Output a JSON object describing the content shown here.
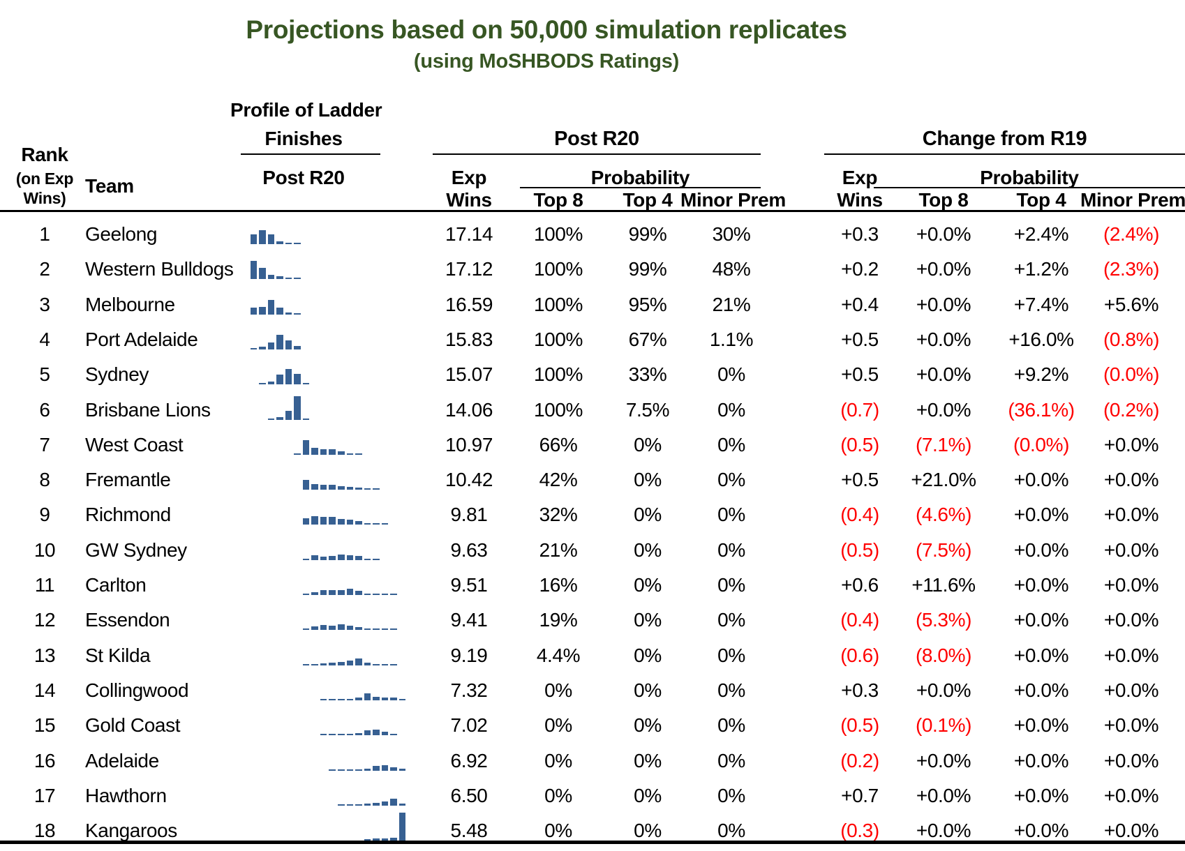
{
  "title": "Projections based on 50,000 simulation replicates",
  "subtitle": "(using MoSHBODS Ratings)",
  "colors": {
    "title_green": "#375623",
    "negative_red": "#FF0000",
    "sparkline_blue": "#376092",
    "text_black": "#000000"
  },
  "header": {
    "rank_line1": "Rank",
    "rank_line2": "(on Exp",
    "rank_line3": "Wins)",
    "team": "Team",
    "profile_line1": "Profile of Ladder",
    "profile_line2": "Finishes",
    "profile_sub": "Post R20",
    "group_post": "Post R20",
    "group_change": "Change from R19",
    "exp": "Exp",
    "wins": "Wins",
    "probability": "Probability",
    "top8": "Top 8",
    "top4": "Top 4",
    "minor_prem": "Minor Prem"
  },
  "chart_data": {
    "type": "table",
    "title": "Projections based on 50,000 simulation replicates",
    "subtitle": "(using MoSHBODS Ratings)",
    "sparkline_meaning": "Profile of Ladder Finishes (Post R20): each mini bar chart shows the relative probability of finishing in ladder positions 1 through 18; values are relative bar heights (0 = none, 2 = trace)",
    "columns": [
      "Rank (on Exp Wins)",
      "Team",
      "Profile of Ladder Finishes Post R20",
      "Post R20 Exp Wins",
      "Post R20 Probability Top 8",
      "Post R20 Probability Top 4",
      "Post R20 Probability Minor Prem",
      "Change from R19 Exp Wins",
      "Change from R19 Probability Top 8",
      "Change from R19 Probability Top 4",
      "Change from R19 Probability Minor Prem"
    ],
    "negative_convention": "values in parentheses are negative and shown in red",
    "rows": [
      {
        "rank": "1",
        "team": "Geelong",
        "profile": [
          14,
          20,
          14,
          4,
          2,
          2,
          0,
          0,
          0,
          0,
          0,
          0,
          0,
          0,
          0,
          0,
          0,
          0
        ],
        "post": {
          "exp_wins": "17.14",
          "top8": "100%",
          "top4": "99%",
          "minor_prem": "30%"
        },
        "change": {
          "exp_wins": "+0.3",
          "top8": "+0.0%",
          "top4": "+2.4%",
          "minor_prem": "(2.4%)"
        }
      },
      {
        "rank": "2",
        "team": "Western Bulldogs",
        "profile": [
          26,
          16,
          6,
          4,
          2,
          2,
          0,
          0,
          0,
          0,
          0,
          0,
          0,
          0,
          0,
          0,
          0,
          0
        ],
        "post": {
          "exp_wins": "17.12",
          "top8": "100%",
          "top4": "99%",
          "minor_prem": "48%"
        },
        "change": {
          "exp_wins": "+0.2",
          "top8": "+0.0%",
          "top4": "+1.2%",
          "minor_prem": "(2.3%)"
        }
      },
      {
        "rank": "3",
        "team": "Melbourne",
        "profile": [
          10,
          11,
          21,
          10,
          3,
          2,
          0,
          0,
          0,
          0,
          0,
          0,
          0,
          0,
          0,
          0,
          0,
          0
        ],
        "post": {
          "exp_wins": "16.59",
          "top8": "100%",
          "top4": "95%",
          "minor_prem": "21%"
        },
        "change": {
          "exp_wins": "+0.4",
          "top8": "+0.0%",
          "top4": "+7.4%",
          "minor_prem": "+5.6%"
        }
      },
      {
        "rank": "4",
        "team": "Port Adelaide",
        "profile": [
          2,
          4,
          10,
          21,
          13,
          5,
          0,
          0,
          0,
          0,
          0,
          0,
          0,
          0,
          0,
          0,
          0,
          0
        ],
        "post": {
          "exp_wins": "15.83",
          "top8": "100%",
          "top4": "67%",
          "minor_prem": "1.1%"
        },
        "change": {
          "exp_wins": "+0.5",
          "top8": "+0.0%",
          "top4": "+16.0%",
          "minor_prem": "(0.8%)"
        }
      },
      {
        "rank": "5",
        "team": "Sydney",
        "profile": [
          0,
          2,
          4,
          14,
          22,
          15,
          2,
          0,
          0,
          0,
          0,
          0,
          0,
          0,
          0,
          0,
          0,
          0
        ],
        "post": {
          "exp_wins": "15.07",
          "top8": "100%",
          "top4": "33%",
          "minor_prem": "0%"
        },
        "change": {
          "exp_wins": "+0.5",
          "top8": "+0.0%",
          "top4": "+9.2%",
          "minor_prem": "(0.0%)"
        }
      },
      {
        "rank": "6",
        "team": "Brisbane Lions",
        "profile": [
          0,
          0,
          2,
          4,
          13,
          34,
          2,
          0,
          0,
          0,
          0,
          0,
          0,
          0,
          0,
          0,
          0,
          0
        ],
        "post": {
          "exp_wins": "14.06",
          "top8": "100%",
          "top4": "7.5%",
          "minor_prem": "0%"
        },
        "change": {
          "exp_wins": "(0.7)",
          "top8": "+0.0%",
          "top4": "(36.1%)",
          "minor_prem": "(0.2%)"
        }
      },
      {
        "rank": "7",
        "team": "West Coast",
        "profile": [
          0,
          0,
          0,
          0,
          0,
          2,
          21,
          10,
          8,
          8,
          5,
          2,
          2,
          0,
          0,
          0,
          0,
          0
        ],
        "post": {
          "exp_wins": "10.97",
          "top8": "66%",
          "top4": "0%",
          "minor_prem": "0%"
        },
        "change": {
          "exp_wins": "(0.5)",
          "top8": "(7.1%)",
          "top4": "(0.0%)",
          "minor_prem": "+0.0%"
        }
      },
      {
        "rank": "8",
        "team": "Fremantle",
        "profile": [
          0,
          0,
          0,
          0,
          0,
          0,
          14,
          8,
          7,
          7,
          5,
          4,
          3,
          2,
          2,
          0,
          0,
          0
        ],
        "post": {
          "exp_wins": "10.42",
          "top8": "42%",
          "top4": "0%",
          "minor_prem": "0%"
        },
        "change": {
          "exp_wins": "+0.5",
          "top8": "+21.0%",
          "top4": "+0.0%",
          "minor_prem": "+0.0%"
        }
      },
      {
        "rank": "9",
        "team": "Richmond",
        "profile": [
          0,
          0,
          0,
          0,
          0,
          0,
          9,
          12,
          11,
          11,
          8,
          7,
          5,
          2,
          2,
          2,
          0,
          0
        ],
        "post": {
          "exp_wins": "9.81",
          "top8": "32%",
          "top4": "0%",
          "minor_prem": "0%"
        },
        "change": {
          "exp_wins": "(0.4)",
          "top8": "(4.6%)",
          "top4": "+0.0%",
          "minor_prem": "+0.0%"
        }
      },
      {
        "rank": "10",
        "team": "GW Sydney",
        "profile": [
          0,
          0,
          0,
          0,
          0,
          0,
          2,
          7,
          5,
          6,
          8,
          7,
          6,
          2,
          2,
          0,
          0,
          0
        ],
        "post": {
          "exp_wins": "9.63",
          "top8": "21%",
          "top4": "0%",
          "minor_prem": "0%"
        },
        "change": {
          "exp_wins": "(0.5)",
          "top8": "(7.5%)",
          "top4": "+0.0%",
          "minor_prem": "+0.0%"
        }
      },
      {
        "rank": "11",
        "team": "Carlton",
        "profile": [
          0,
          0,
          0,
          0,
          0,
          0,
          2,
          4,
          7,
          7,
          7,
          9,
          6,
          2,
          2,
          2,
          2,
          0
        ],
        "post": {
          "exp_wins": "9.51",
          "top8": "16%",
          "top4": "0%",
          "minor_prem": "0%"
        },
        "change": {
          "exp_wins": "+0.6",
          "top8": "+11.6%",
          "top4": "+0.0%",
          "minor_prem": "+0.0%"
        }
      },
      {
        "rank": "12",
        "team": "Essendon",
        "profile": [
          0,
          0,
          0,
          0,
          0,
          0,
          2,
          5,
          7,
          6,
          8,
          6,
          4,
          2,
          2,
          2,
          2,
          0
        ],
        "post": {
          "exp_wins": "9.41",
          "top8": "19%",
          "top4": "0%",
          "minor_prem": "0%"
        },
        "change": {
          "exp_wins": "(0.4)",
          "top8": "(5.3%)",
          "top4": "+0.0%",
          "minor_prem": "+0.0%"
        }
      },
      {
        "rank": "13",
        "team": "St Kilda",
        "profile": [
          0,
          0,
          0,
          0,
          0,
          0,
          2,
          2,
          3,
          4,
          5,
          7,
          10,
          4,
          2,
          2,
          2,
          0
        ],
        "post": {
          "exp_wins": "9.19",
          "top8": "4.4%",
          "top4": "0%",
          "minor_prem": "0%"
        },
        "change": {
          "exp_wins": "(0.6)",
          "top8": "(8.0%)",
          "top4": "+0.0%",
          "minor_prem": "+0.0%"
        }
      },
      {
        "rank": "14",
        "team": "Collingwood",
        "profile": [
          0,
          0,
          0,
          0,
          0,
          0,
          0,
          0,
          2,
          2,
          2,
          2,
          4,
          10,
          5,
          4,
          4,
          2
        ],
        "post": {
          "exp_wins": "7.32",
          "top8": "0%",
          "top4": "0%",
          "minor_prem": "0%"
        },
        "change": {
          "exp_wins": "+0.3",
          "top8": "+0.0%",
          "top4": "+0.0%",
          "minor_prem": "+0.0%"
        }
      },
      {
        "rank": "15",
        "team": "Gold Coast",
        "profile": [
          0,
          0,
          0,
          0,
          0,
          0,
          0,
          0,
          2,
          2,
          2,
          2,
          3,
          7,
          8,
          5,
          2,
          0
        ],
        "post": {
          "exp_wins": "7.02",
          "top8": "0%",
          "top4": "0%",
          "minor_prem": "0%"
        },
        "change": {
          "exp_wins": "(0.5)",
          "top8": "(0.1%)",
          "top4": "+0.0%",
          "minor_prem": "+0.0%"
        }
      },
      {
        "rank": "16",
        "team": "Adelaide",
        "profile": [
          0,
          0,
          0,
          0,
          0,
          0,
          0,
          0,
          0,
          2,
          2,
          2,
          2,
          3,
          7,
          8,
          5,
          3
        ],
        "post": {
          "exp_wins": "6.92",
          "top8": "0%",
          "top4": "0%",
          "minor_prem": "0%"
        },
        "change": {
          "exp_wins": "(0.2)",
          "top8": "+0.0%",
          "top4": "+0.0%",
          "minor_prem": "+0.0%"
        }
      },
      {
        "rank": "17",
        "team": "Hawthorn",
        "profile": [
          0,
          0,
          0,
          0,
          0,
          0,
          0,
          0,
          0,
          0,
          2,
          2,
          2,
          3,
          4,
          6,
          10,
          3
        ],
        "post": {
          "exp_wins": "6.50",
          "top8": "0%",
          "top4": "0%",
          "minor_prem": "0%"
        },
        "change": {
          "exp_wins": "+0.7",
          "top8": "+0.0%",
          "top4": "+0.0%",
          "minor_prem": "+0.0%"
        }
      },
      {
        "rank": "18",
        "team": "Kangaroos",
        "profile": [
          0,
          0,
          0,
          0,
          0,
          0,
          0,
          0,
          0,
          0,
          0,
          0,
          0,
          2,
          3,
          3,
          4,
          40
        ],
        "post": {
          "exp_wins": "5.48",
          "top8": "0%",
          "top4": "0%",
          "minor_prem": "0%"
        },
        "change": {
          "exp_wins": "(0.3)",
          "top8": "+0.0%",
          "top4": "+0.0%",
          "minor_prem": "+0.0%"
        }
      }
    ]
  }
}
